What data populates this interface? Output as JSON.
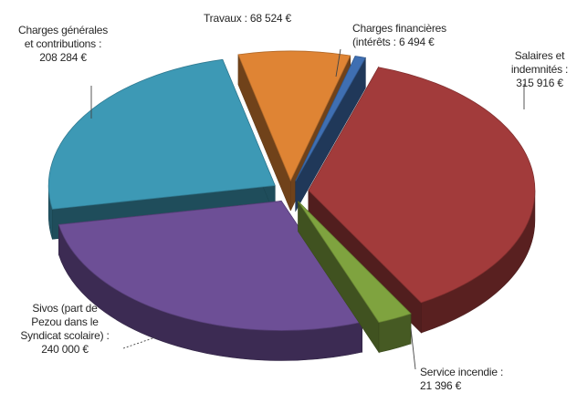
{
  "chart_data": {
    "type": "pie",
    "title": "",
    "style": "3d-exploded",
    "slices": [
      {
        "label": "Salaires et\nindemnités :\n315 916 €",
        "value": 315916,
        "color": "#a23b3b"
      },
      {
        "label": "Service incendie :\n21 396 €",
        "value": 21396,
        "color": "#7fa33f"
      },
      {
        "label": "Sivos (part de\nPezou dans le\nSyndicat scolaire) :\n240 000 €",
        "value": 240000,
        "color": "#6d4f96"
      },
      {
        "label": "Charges générales\net contributions :\n208 284 €",
        "value": 208284,
        "color": "#3d99b5"
      },
      {
        "label": "Travaux : 68 524 €",
        "value": 68524,
        "color": "#df8434"
      },
      {
        "label": "Charges financières\n(intérêts : 6 494 €",
        "value": 6494,
        "color": "#3f6fb2"
      }
    ]
  }
}
